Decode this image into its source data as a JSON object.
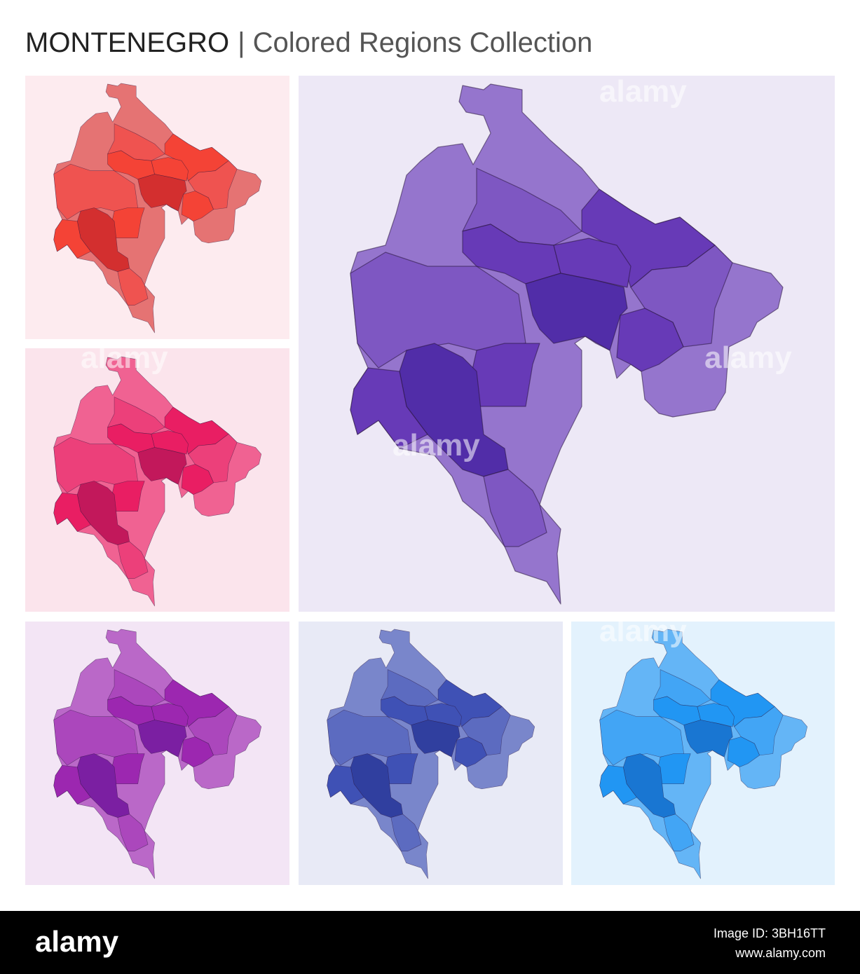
{
  "header": {
    "title": "MONTENEGRO",
    "subtitle": "| Colored Regions Collection"
  },
  "watermark": "alamy",
  "footer": {
    "logo": "alamy",
    "image_id": "Image ID: 3BH16TT",
    "url": "www.alamy.com"
  }
}
